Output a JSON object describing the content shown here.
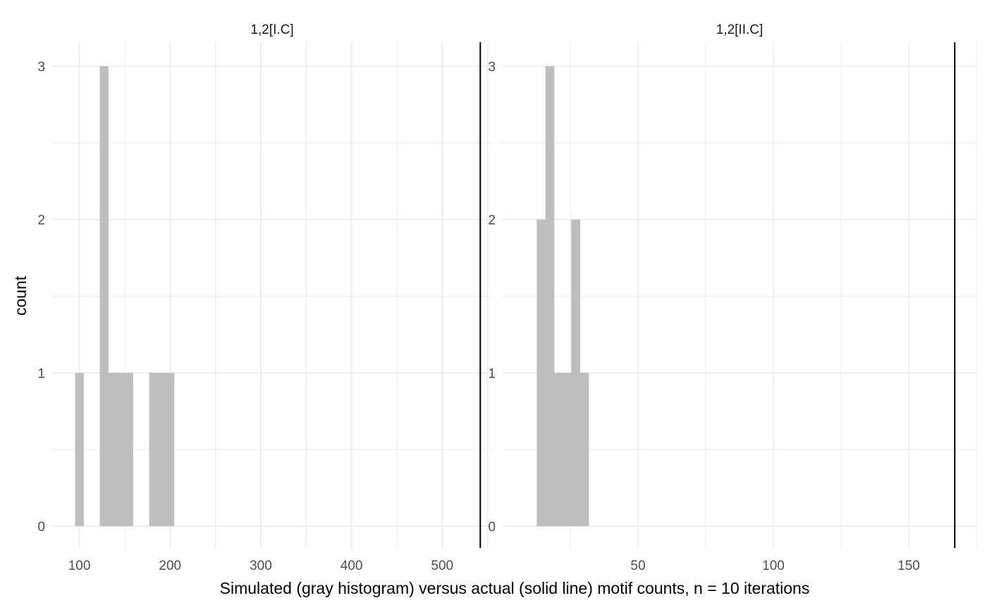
{
  "chart_data": {
    "type": "bar",
    "xlabel": "Simulated (gray histogram) versus actual (solid line) motif counts, n = 10 iterations",
    "ylabel": "count",
    "ylim": [
      0,
      3
    ],
    "y_ticks": [
      0,
      1,
      2,
      3
    ],
    "grid": true,
    "colors": {
      "bars": "#bebebe",
      "line": "#000000",
      "grid": "#ebebeb"
    },
    "panels": [
      {
        "title": "1,2[I.C]",
        "xlim": [
          70,
          555
        ],
        "x_ticks": [
          100,
          200,
          300,
          400,
          500
        ],
        "bins": [
          {
            "x0": 95.3,
            "x1": 104.4,
            "count": 1
          },
          {
            "x0": 122.5,
            "x1": 131.6,
            "count": 3
          },
          {
            "x0": 131.6,
            "x1": 140.7,
            "count": 1
          },
          {
            "x0": 140.7,
            "x1": 149.8,
            "count": 1
          },
          {
            "x0": 149.8,
            "x1": 158.8,
            "count": 1
          },
          {
            "x0": 176.9,
            "x1": 186.0,
            "count": 1
          },
          {
            "x0": 186.0,
            "x1": 195.1,
            "count": 1
          },
          {
            "x0": 195.1,
            "x1": 204.2,
            "count": 1
          }
        ],
        "actual": 542
      },
      {
        "title": "1,2[II.C]",
        "xlim": [
          0,
          175
        ],
        "x_ticks": [
          50,
          100,
          150
        ],
        "bins": [
          {
            "x0": 12.6,
            "x1": 15.8,
            "count": 2
          },
          {
            "x0": 15.8,
            "x1": 18.9,
            "count": 3
          },
          {
            "x0": 18.9,
            "x1": 22.1,
            "count": 1
          },
          {
            "x0": 22.1,
            "x1": 25.3,
            "count": 1
          },
          {
            "x0": 25.3,
            "x1": 28.5,
            "count": 2
          },
          {
            "x0": 28.5,
            "x1": 31.7,
            "count": 1
          }
        ],
        "actual": 167
      }
    ]
  }
}
